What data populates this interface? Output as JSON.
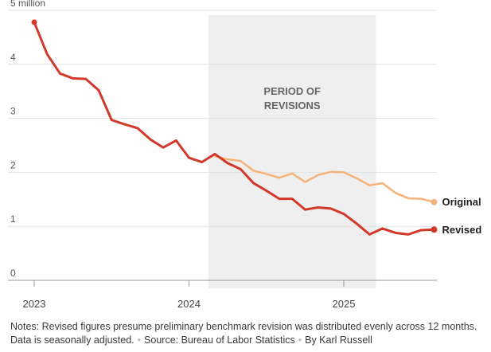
{
  "chart_data": {
    "type": "line",
    "y_unit_label": "5 million",
    "yticks": [
      0,
      1,
      2,
      3,
      4,
      5
    ],
    "ytick_labels": [
      "0",
      "1",
      "2",
      "3",
      "4",
      "5 million"
    ],
    "ylim": [
      0,
      5
    ],
    "xticks": [
      "2023-01",
      "2024-01",
      "2025-01"
    ],
    "xtick_labels": [
      "2023",
      "2024",
      "2025"
    ],
    "xlim": [
      "2023-01",
      "2025-08"
    ],
    "grid": true,
    "shaded_region": {
      "label_lines": [
        "PERIOD OF",
        "REVISIONS"
      ],
      "start": "2024-03",
      "end": "2025-03"
    },
    "series": [
      {
        "name": "Revised",
        "color": "#d2392b",
        "end_marker": true,
        "x": [
          "2023-01",
          "2023-02",
          "2023-03",
          "2023-04",
          "2023-05",
          "2023-06",
          "2023-07",
          "2023-08",
          "2023-09",
          "2023-10",
          "2023-11",
          "2023-12",
          "2024-01",
          "2024-02",
          "2024-03",
          "2024-04",
          "2024-05",
          "2024-06",
          "2024-07",
          "2024-08",
          "2024-09",
          "2024-10",
          "2024-11",
          "2024-12",
          "2025-01",
          "2025-02",
          "2025-03",
          "2025-04",
          "2025-05",
          "2025-06",
          "2025-07",
          "2025-08"
        ],
        "values": [
          4.78,
          4.19,
          3.83,
          3.74,
          3.73,
          3.52,
          2.97,
          2.89,
          2.82,
          2.61,
          2.46,
          2.59,
          2.27,
          2.19,
          2.34,
          2.17,
          2.06,
          1.8,
          1.66,
          1.51,
          1.51,
          1.31,
          1.35,
          1.33,
          1.23,
          1.05,
          0.85,
          0.96,
          0.88,
          0.85,
          0.93,
          0.94
        ]
      },
      {
        "name": "Original",
        "color": "#f5b37a",
        "end_marker": true,
        "x": [
          "2024-03",
          "2024-04",
          "2024-05",
          "2024-06",
          "2024-07",
          "2024-08",
          "2024-09",
          "2024-10",
          "2024-11",
          "2024-12",
          "2025-01",
          "2025-02",
          "2025-03",
          "2025-04",
          "2025-05",
          "2025-06",
          "2025-07",
          "2025-08"
        ],
        "values": [
          2.3,
          2.24,
          2.21,
          2.03,
          1.97,
          1.9,
          1.98,
          1.82,
          1.95,
          2.01,
          2.0,
          1.89,
          1.76,
          1.8,
          1.62,
          1.52,
          1.51,
          1.45
        ]
      }
    ]
  },
  "footer": {
    "notes_line1": "Notes: Revised figures presume preliminary benchmark revision was distributed evenly across 12 months.",
    "notes_line2": "Data is seasonally adjusted.",
    "source": "Source: Bureau of Labor Statistics",
    "byline": "By Karl Russell",
    "separator": "•"
  }
}
